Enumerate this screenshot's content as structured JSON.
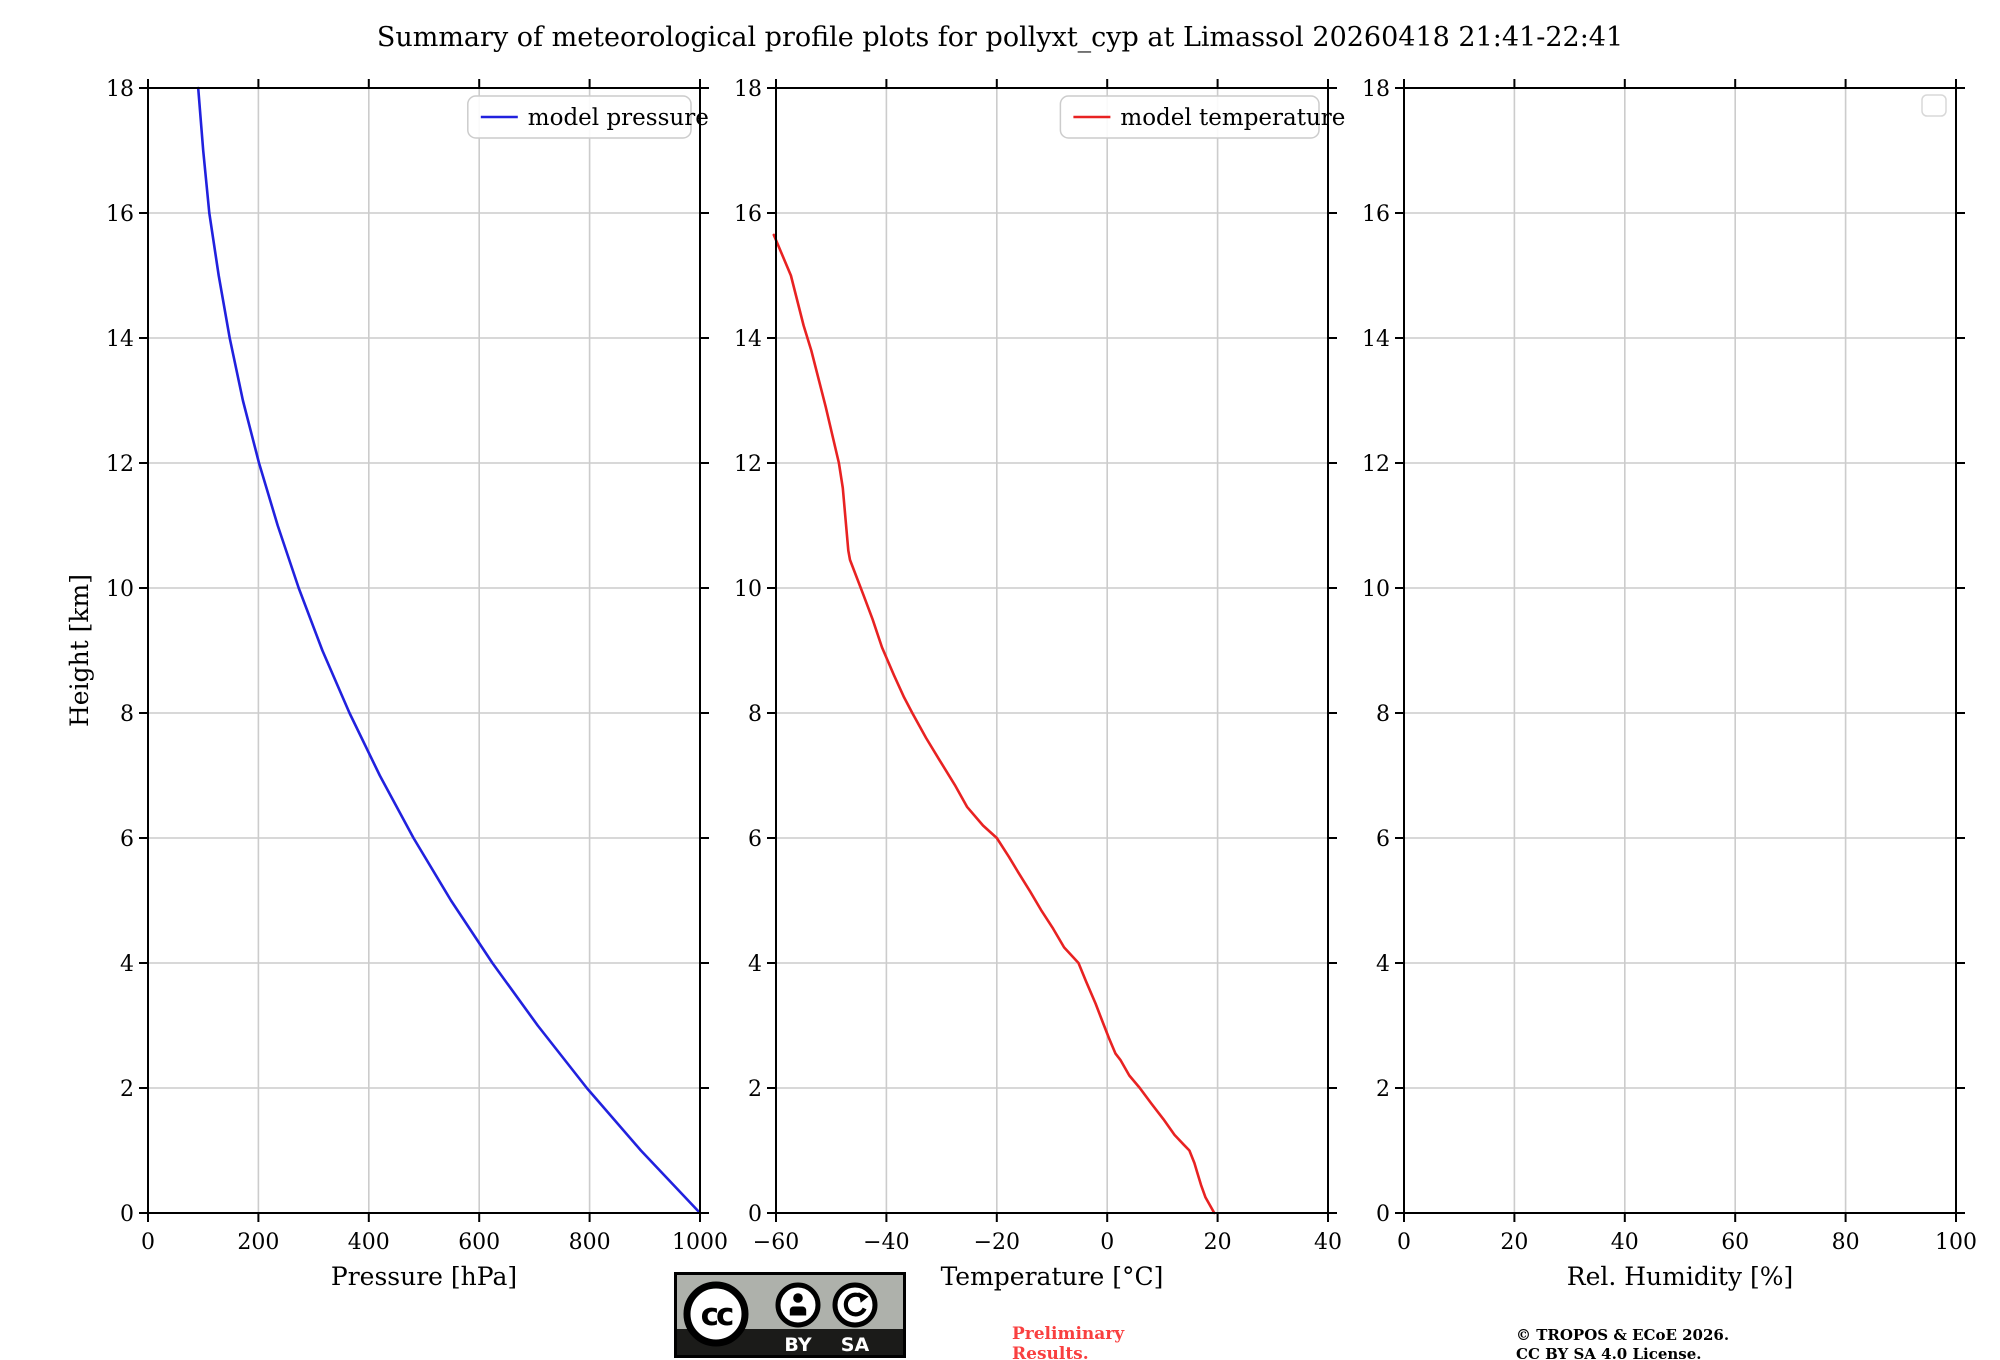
{
  "title": "Summary of meteorological profile plots for pollyxt_cyp at Limassol 20260418 21:41-22:41",
  "colors": {
    "pressure_line": "#2121de",
    "temperature_line": "#e82222",
    "grid": "#cccccc",
    "axis": "#000000",
    "legend_edge": "#cccccc",
    "preliminary_text": "#f94040"
  },
  "y_axis_label": "Height [km]",
  "chart_data": [
    {
      "type": "line",
      "title": "",
      "xlabel": "Pressure [hPa]",
      "ylabel": "Height [km]",
      "xlim": [
        0,
        1000
      ],
      "xticks": [
        0,
        200,
        400,
        600,
        800,
        1000
      ],
      "xtick_labels": [
        "0",
        "200",
        "400",
        "600",
        "800",
        "1000"
      ],
      "ylim": [
        0,
        18
      ],
      "yticks": [
        0,
        2,
        4,
        6,
        8,
        10,
        12,
        14,
        16,
        18
      ],
      "ytick_labels": [
        "0",
        "2",
        "4",
        "6",
        "8",
        "10",
        "12",
        "14",
        "16",
        "18"
      ],
      "grid": true,
      "legend": {
        "position": "upper right",
        "entries": [
          {
            "label": "model pressure",
            "color": "#2121de"
          }
        ]
      },
      "series": [
        {
          "name": "model pressure",
          "color": "#2121de",
          "units_x": "hPa",
          "units_y": "km",
          "points": [
            [
              1000,
              0
            ],
            [
              893,
              1
            ],
            [
              795,
              2
            ],
            [
              706,
              3
            ],
            [
              624,
              4
            ],
            [
              549,
              5
            ],
            [
              481,
              6
            ],
            [
              420,
              7
            ],
            [
              365,
              8
            ],
            [
              316,
              9
            ],
            [
              273,
              10
            ],
            [
              235,
              11
            ],
            [
              201,
              12
            ],
            [
              172,
              13
            ],
            [
              148,
              14
            ],
            [
              128,
              15
            ],
            [
              111,
              16
            ],
            [
              100,
              17
            ],
            [
              91,
              18
            ]
          ]
        }
      ]
    },
    {
      "type": "line",
      "title": "",
      "xlabel": "Temperature [°C]",
      "ylabel": "",
      "xlim": [
        -60,
        40
      ],
      "xticks": [
        -60,
        -40,
        -20,
        0,
        20,
        40
      ],
      "xtick_labels": [
        "−60",
        "−40",
        "−20",
        "0",
        "20",
        "40"
      ],
      "ylim": [
        0,
        18
      ],
      "yticks": [
        0,
        2,
        4,
        6,
        8,
        10,
        12,
        14,
        16,
        18
      ],
      "ytick_labels": [
        "0",
        "2",
        "4",
        "6",
        "8",
        "10",
        "12",
        "14",
        "16",
        "18"
      ],
      "grid": true,
      "legend": {
        "position": "upper right",
        "entries": [
          {
            "label": "model temperature",
            "color": "#e82222"
          }
        ]
      },
      "series": [
        {
          "name": "model temperature",
          "color": "#e82222",
          "units_x": "°C",
          "units_y": "km",
          "points": [
            [
              -60.4,
              15.65
            ],
            [
              -57.3,
              15.0
            ],
            [
              -55.0,
              14.2
            ],
            [
              -53.6,
              13.8
            ],
            [
              -51.0,
              12.9
            ],
            [
              -48.6,
              12.0
            ],
            [
              -47.9,
              11.6
            ],
            [
              -46.9,
              10.6
            ],
            [
              -46.6,
              10.45
            ],
            [
              -44.2,
              9.9
            ],
            [
              -42.5,
              9.5
            ],
            [
              -40.8,
              9.05
            ],
            [
              -38.6,
              8.6
            ],
            [
              -36.8,
              8.25
            ],
            [
              -35.3,
              8.0
            ],
            [
              -32.8,
              7.6
            ],
            [
              -30.4,
              7.25
            ],
            [
              -27.6,
              6.85
            ],
            [
              -25.4,
              6.5
            ],
            [
              -22.5,
              6.2
            ],
            [
              -20.0,
              6.0
            ],
            [
              -17.8,
              5.7
            ],
            [
              -16.1,
              5.45
            ],
            [
              -14.0,
              5.15
            ],
            [
              -12.0,
              4.85
            ],
            [
              -9.8,
              4.55
            ],
            [
              -7.8,
              4.25
            ],
            [
              -5.2,
              4.0
            ],
            [
              -3.8,
              3.7
            ],
            [
              -2.1,
              3.35
            ],
            [
              -0.8,
              3.05
            ],
            [
              0.3,
              2.8
            ],
            [
              1.5,
              2.55
            ],
            [
              2.4,
              2.45
            ],
            [
              4.0,
              2.2
            ],
            [
              5.9,
              2.0
            ],
            [
              8.0,
              1.75
            ],
            [
              10.2,
              1.5
            ],
            [
              12.2,
              1.25
            ],
            [
              13.8,
              1.1
            ],
            [
              14.9,
              1.0
            ],
            [
              15.8,
              0.8
            ],
            [
              16.3,
              0.65
            ],
            [
              17.0,
              0.45
            ],
            [
              17.8,
              0.25
            ],
            [
              19.4,
              0.0
            ]
          ]
        }
      ]
    },
    {
      "type": "line",
      "title": "",
      "xlabel": "Rel. Humidity [%]",
      "ylabel": "",
      "xlim": [
        0,
        100
      ],
      "xticks": [
        0,
        20,
        40,
        60,
        80,
        100
      ],
      "xtick_labels": [
        "0",
        "20",
        "40",
        "60",
        "80",
        "100"
      ],
      "ylim": [
        0,
        18
      ],
      "yticks": [
        0,
        2,
        4,
        6,
        8,
        10,
        12,
        14,
        16,
        18
      ],
      "ytick_labels": [
        "0",
        "2",
        "4",
        "6",
        "8",
        "10",
        "12",
        "14",
        "16",
        "18"
      ],
      "grid": true,
      "legend": {
        "position": "upper right",
        "entries": []
      },
      "series": []
    }
  ],
  "footer": {
    "cc_badge": {
      "cc_text": "cc",
      "by_label": "BY",
      "sa_label": "SA"
    },
    "preliminary_lines": [
      "Preliminary",
      "Results."
    ],
    "copyright_lines": [
      "© TROPOS & ECoE 2026.",
      "CC BY SA 4.0 License."
    ]
  }
}
